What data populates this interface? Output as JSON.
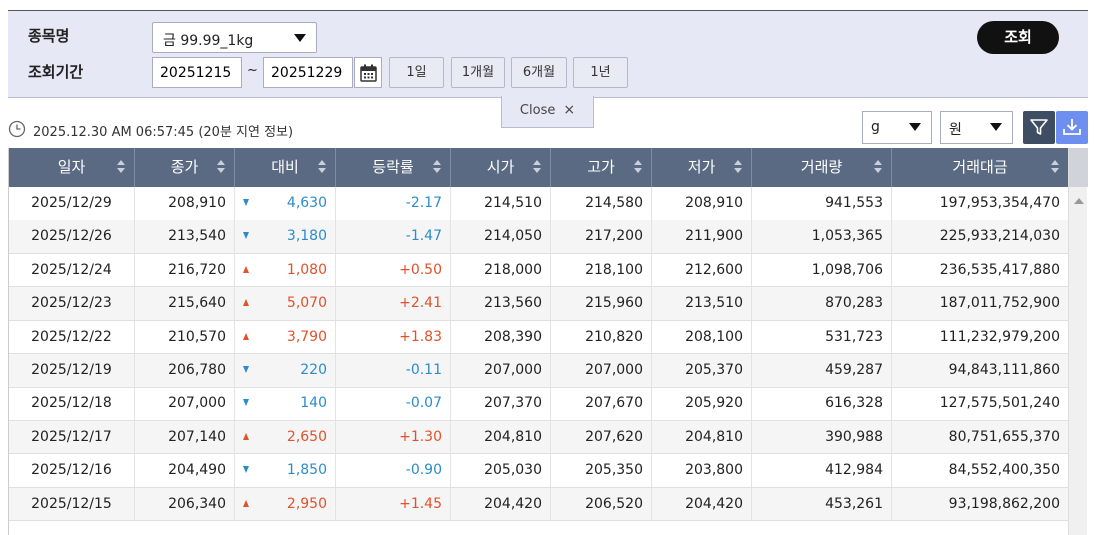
{
  "search": {
    "item_label": "종목명",
    "item_selected": "금 99.99_1kg",
    "period_label": "조회기간",
    "start_date": "20251215",
    "tilde": "~",
    "end_date": "20251229",
    "period_buttons": [
      "1일",
      "1개월",
      "6개월",
      "1년"
    ],
    "search_button": "조회",
    "close_label": "Close",
    "close_icon": "×"
  },
  "info": {
    "timestamp": "2025.12.30 AM 06:57:45",
    "delay_note": "(20분 지연 정보)",
    "weight_unit": "g",
    "currency_unit": "원"
  },
  "table": {
    "headers": [
      "일자",
      "종가",
      "대비",
      "등락률",
      "시가",
      "고가",
      "저가",
      "거래량",
      "거래대금"
    ],
    "rows": [
      {
        "date": "2025/12/29",
        "close": "208,910",
        "dir": "down",
        "change": "4,630",
        "rate": "-2.17",
        "open": "214,510",
        "high": "214,580",
        "low": "208,910",
        "volume": "941,553",
        "amount": "197,953,354,470"
      },
      {
        "date": "2025/12/26",
        "close": "213,540",
        "dir": "down",
        "change": "3,180",
        "rate": "-1.47",
        "open": "214,050",
        "high": "217,200",
        "low": "211,900",
        "volume": "1,053,365",
        "amount": "225,933,214,030"
      },
      {
        "date": "2025/12/24",
        "close": "216,720",
        "dir": "up",
        "change": "1,080",
        "rate": "+0.50",
        "open": "218,000",
        "high": "218,100",
        "low": "212,600",
        "volume": "1,098,706",
        "amount": "236,535,417,880"
      },
      {
        "date": "2025/12/23",
        "close": "215,640",
        "dir": "up",
        "change": "5,070",
        "rate": "+2.41",
        "open": "213,560",
        "high": "215,960",
        "low": "213,510",
        "volume": "870,283",
        "amount": "187,011,752,900"
      },
      {
        "date": "2025/12/22",
        "close": "210,570",
        "dir": "up",
        "change": "3,790",
        "rate": "+1.83",
        "open": "208,390",
        "high": "210,820",
        "low": "208,100",
        "volume": "531,723",
        "amount": "111,232,979,200"
      },
      {
        "date": "2025/12/19",
        "close": "206,780",
        "dir": "down",
        "change": "220",
        "rate": "-0.11",
        "open": "207,000",
        "high": "207,000",
        "low": "205,370",
        "volume": "459,287",
        "amount": "94,843,111,860"
      },
      {
        "date": "2025/12/18",
        "close": "207,000",
        "dir": "down",
        "change": "140",
        "rate": "-0.07",
        "open": "207,370",
        "high": "207,670",
        "low": "205,920",
        "volume": "616,328",
        "amount": "127,575,501,240"
      },
      {
        "date": "2025/12/17",
        "close": "207,140",
        "dir": "up",
        "change": "2,650",
        "rate": "+1.30",
        "open": "204,810",
        "high": "207,620",
        "low": "204,810",
        "volume": "390,988",
        "amount": "80,751,655,370"
      },
      {
        "date": "2025/12/16",
        "close": "204,490",
        "dir": "down",
        "change": "1,850",
        "rate": "-0.90",
        "open": "205,030",
        "high": "205,350",
        "low": "203,800",
        "volume": "412,984",
        "amount": "84,552,400,350"
      },
      {
        "date": "2025/12/15",
        "close": "206,340",
        "dir": "up",
        "change": "2,950",
        "rate": "+1.45",
        "open": "204,420",
        "high": "206,520",
        "low": "204,420",
        "volume": "453,261",
        "amount": "93,198,862,200"
      }
    ]
  },
  "colors": {
    "up": "#e0522c",
    "down": "#2b8ccc",
    "header_bg": "#5a6a83",
    "panel_bg": "#e6e8f5"
  }
}
